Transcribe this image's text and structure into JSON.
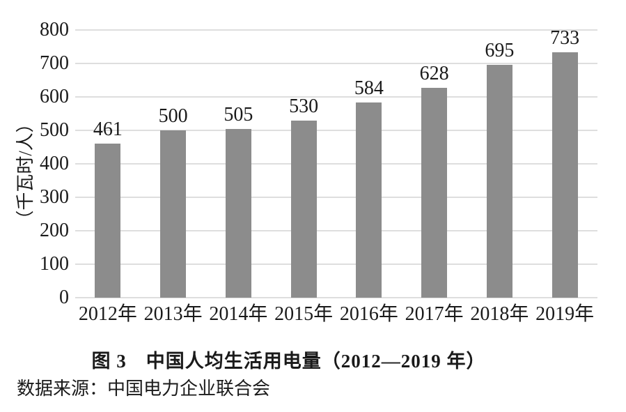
{
  "chart_data": {
    "type": "bar",
    "title": "图 3　中国人均生活用电量（2012—2019 年）",
    "categories": [
      "2012年",
      "2013年",
      "2014年",
      "2015年",
      "2016年",
      "2017年",
      "2018年",
      "2019年"
    ],
    "values": [
      461,
      500,
      505,
      530,
      584,
      628,
      695,
      733
    ],
    "value_labels_shown": true,
    "xlabel": "",
    "ylabel": "（千瓦时/人）",
    "ylim": [
      0,
      800
    ],
    "yticks": [
      0,
      100,
      200,
      300,
      400,
      500,
      600,
      700,
      800
    ],
    "grid": true,
    "legend": "none",
    "bar_color": "#8c8c8c",
    "gridline_color": "#dedede",
    "text_color": "#1a1a1a",
    "background_color": "#ffffff"
  },
  "source": {
    "text": "数据来源：中国电力企业联合会"
  }
}
